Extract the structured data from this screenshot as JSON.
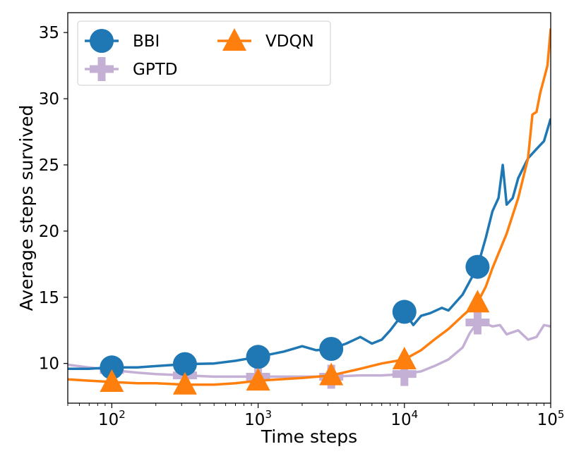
{
  "chart_data": {
    "type": "line",
    "xscale": "log",
    "xlabel": "Time steps",
    "ylabel": "Average steps survived",
    "xlim": [
      50,
      100000
    ],
    "ylim": [
      7,
      36.5
    ],
    "x_ticks": [
      {
        "value": 100,
        "base": "10",
        "exp": "2"
      },
      {
        "value": 1000,
        "base": "10",
        "exp": "3"
      },
      {
        "value": 10000,
        "base": "10",
        "exp": "4"
      },
      {
        "value": 100000,
        "base": "10",
        "exp": "5"
      }
    ],
    "y_ticks": [
      {
        "value": 10,
        "label": "10"
      },
      {
        "value": 15,
        "label": "15"
      },
      {
        "value": 20,
        "label": "20"
      },
      {
        "value": 25,
        "label": "25"
      },
      {
        "value": 30,
        "label": "30"
      },
      {
        "value": 35,
        "label": "35"
      }
    ],
    "legend": {
      "position": "top-left",
      "columns": 2
    },
    "series": [
      {
        "name": "BBI",
        "color": "#1f77b4",
        "marker": "circle",
        "points": [
          [
            50,
            9.6
          ],
          [
            70,
            9.6
          ],
          [
            100,
            9.7
          ],
          [
            150,
            9.7
          ],
          [
            200,
            9.8
          ],
          [
            316,
            9.95
          ],
          [
            500,
            10.0
          ],
          [
            700,
            10.2
          ],
          [
            1000,
            10.5
          ],
          [
            1500,
            10.9
          ],
          [
            2000,
            11.3
          ],
          [
            2500,
            11.0
          ],
          [
            3162,
            11.1
          ],
          [
            4000,
            11.5
          ],
          [
            5000,
            12.0
          ],
          [
            6000,
            11.5
          ],
          [
            7000,
            11.8
          ],
          [
            8000,
            12.5
          ],
          [
            10000,
            13.9
          ],
          [
            11500,
            12.9
          ],
          [
            13000,
            13.6
          ],
          [
            15000,
            13.8
          ],
          [
            18000,
            14.2
          ],
          [
            20000,
            14.0
          ],
          [
            25000,
            15.2
          ],
          [
            31623,
            17.3
          ],
          [
            36000,
            19.5
          ],
          [
            40000,
            21.5
          ],
          [
            44000,
            22.5
          ],
          [
            47000,
            25.0
          ],
          [
            50000,
            22.0
          ],
          [
            55000,
            22.5
          ],
          [
            60000,
            24.0
          ],
          [
            70000,
            25.5
          ],
          [
            80000,
            26.2
          ],
          [
            90000,
            26.8
          ],
          [
            100000,
            28.5
          ]
        ],
        "marker_x": [
          100,
          316,
          1000,
          3162,
          10000,
          31623
        ]
      },
      {
        "name": "GPTD",
        "color": "#c5b0d5",
        "marker": "plus",
        "points": [
          [
            50,
            9.9
          ],
          [
            70,
            9.7
          ],
          [
            100,
            9.5
          ],
          [
            150,
            9.3
          ],
          [
            200,
            9.2
          ],
          [
            316,
            9.1
          ],
          [
            500,
            9.0
          ],
          [
            700,
            9.0
          ],
          [
            1000,
            9.0
          ],
          [
            2000,
            9.0
          ],
          [
            3162,
            9.0
          ],
          [
            5000,
            9.1
          ],
          [
            7000,
            9.1
          ],
          [
            10000,
            9.2
          ],
          [
            13000,
            9.4
          ],
          [
            16000,
            9.8
          ],
          [
            20000,
            10.3
          ],
          [
            25000,
            11.2
          ],
          [
            28000,
            12.3
          ],
          [
            31623,
            13.1
          ],
          [
            36000,
            13.0
          ],
          [
            40000,
            12.8
          ],
          [
            45000,
            12.9
          ],
          [
            50000,
            12.2
          ],
          [
            60000,
            12.5
          ],
          [
            70000,
            11.8
          ],
          [
            80000,
            12.0
          ],
          [
            90000,
            12.9
          ],
          [
            100000,
            12.8
          ]
        ],
        "marker_x": [
          100,
          316,
          1000,
          3162,
          10000,
          31623
        ]
      },
      {
        "name": "VDQN",
        "color": "#ff7f0e",
        "marker": "triangle",
        "points": [
          [
            50,
            8.8
          ],
          [
            70,
            8.7
          ],
          [
            100,
            8.6
          ],
          [
            150,
            8.5
          ],
          [
            200,
            8.5
          ],
          [
            316,
            8.4
          ],
          [
            500,
            8.4
          ],
          [
            700,
            8.5
          ],
          [
            1000,
            8.7
          ],
          [
            2000,
            8.9
          ],
          [
            3162,
            9.1
          ],
          [
            5000,
            9.6
          ],
          [
            7000,
            10.0
          ],
          [
            10000,
            10.3
          ],
          [
            13000,
            11.0
          ],
          [
            16000,
            11.8
          ],
          [
            20000,
            12.6
          ],
          [
            25000,
            13.6
          ],
          [
            31623,
            14.6
          ],
          [
            36000,
            15.8
          ],
          [
            40000,
            17.2
          ],
          [
            50000,
            19.8
          ],
          [
            60000,
            22.5
          ],
          [
            70000,
            25.5
          ],
          [
            75000,
            28.8
          ],
          [
            80000,
            29.0
          ],
          [
            85000,
            30.5
          ],
          [
            90000,
            31.5
          ],
          [
            95000,
            32.5
          ],
          [
            100000,
            35.3
          ]
        ],
        "marker_x": [
          100,
          316,
          1000,
          3162,
          10000,
          31623
        ]
      }
    ]
  }
}
